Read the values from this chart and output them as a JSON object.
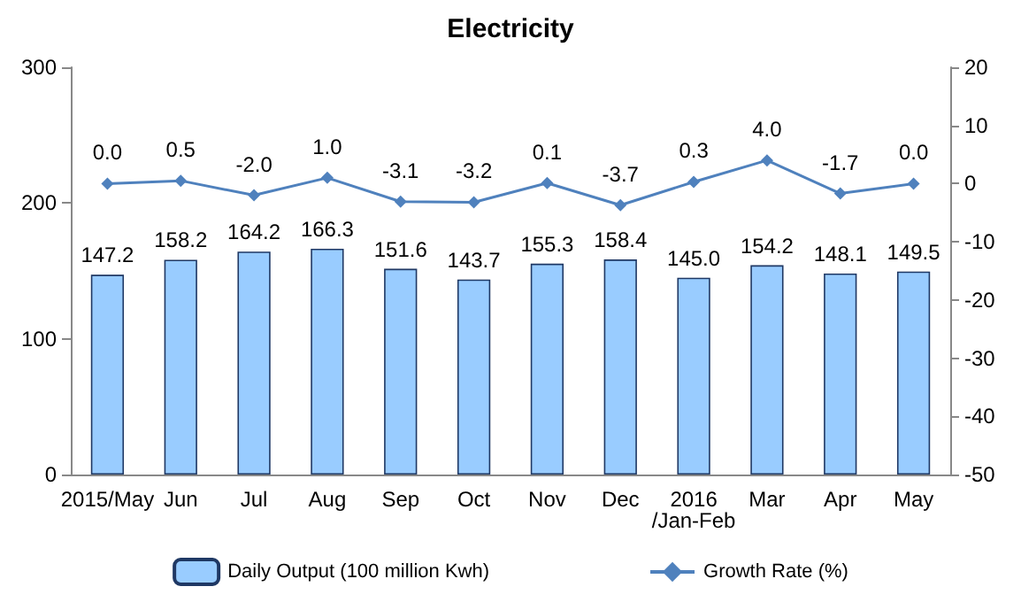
{
  "chart_data": {
    "type": "bar",
    "title": "Electricity",
    "categories": [
      "2015/May",
      "Jun",
      "Jul",
      "Aug",
      "Sep",
      "Oct",
      "Nov",
      "Dec",
      "2016\n/Jan-Feb",
      "Mar",
      "Apr",
      "May"
    ],
    "series": [
      {
        "name": "Daily Output (100 million Kwh)",
        "color": "#99ccff",
        "values": [
          147.2,
          158.2,
          164.2,
          166.3,
          151.6,
          143.7,
          155.3,
          158.4,
          145,
          154.2,
          148.1,
          149.5
        ],
        "value_labels": [
          "147.2",
          "158.2",
          "164.2",
          "166.3",
          "151.6",
          "143.7",
          "155.3",
          "158.4",
          "145.0",
          "154.2",
          "148.1",
          "149.5"
        ]
      },
      {
        "name": "Growth Rate (%)",
        "type": "line",
        "axis": "y2",
        "color": "#4f81bd",
        "marker": "diamond",
        "values": [
          0,
          0.5,
          -2,
          1,
          -3.1,
          -3.2,
          0.1,
          -3.7,
          0.3,
          4,
          -1.7,
          0
        ],
        "value_labels": [
          "0.0",
          "0.5",
          "-2.0",
          "1.0",
          "-3.1",
          "-3.2",
          "0.1",
          "-3.7",
          "0.3",
          "4.0",
          "-1.7",
          "0.0"
        ]
      }
    ],
    "ylim": [
      0,
      300
    ],
    "yticks": [
      0,
      100,
      200,
      300
    ],
    "y2lim": [
      -50,
      20
    ],
    "y2ticks": [
      -50,
      -40,
      -30,
      -20,
      -10,
      0,
      10,
      20
    ],
    "legend": "bottom",
    "grid": false
  }
}
